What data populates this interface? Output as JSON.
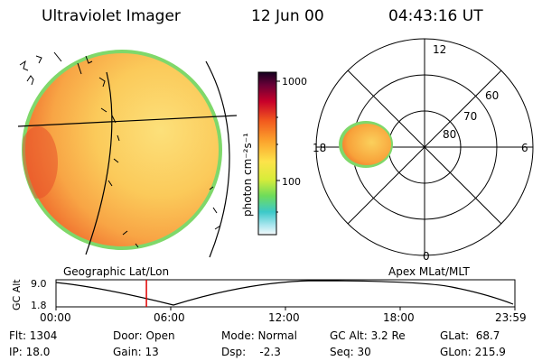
{
  "header": {
    "title": "Ultraviolet Imager",
    "date": "12 Jun 00",
    "time": "04:43:16 UT"
  },
  "colorbar": {
    "unit_label": "photon cm⁻²s⁻¹",
    "ticks": [
      "1000",
      "100"
    ]
  },
  "labels": {
    "geographic": "Geographic Lat/Lon",
    "apex": "Apex MLat/MLT"
  },
  "polar_plot": {
    "mlt_labels": [
      "12",
      "18",
      "6",
      "0"
    ],
    "mlat_labels": [
      "60",
      "70",
      "80"
    ]
  },
  "timeline": {
    "axis_label": "GC Alt",
    "y_ticks": [
      "9.0",
      "1.8"
    ],
    "x_ticks": [
      "00:00",
      "06:00",
      "12:00",
      "18:00",
      "23:59"
    ],
    "current_time_fraction": 0.197
  },
  "info": {
    "flt": "Flt: 1304",
    "ip": "IP: 18.0",
    "door": "Door: Open",
    "gain": "Gain: 13",
    "mode": "Mode: Normal",
    "dsp": "Dsp:    -2.3",
    "gc_alt": "GC Alt: 3.2 Re",
    "seq": "Seq: 30",
    "glat": "GLat:  68.7",
    "glon": "GLon: 215.9"
  },
  "colors": {
    "marker": "#e00000",
    "disk_fill": "#fbd56a",
    "disk_edge": "#7fd86a"
  }
}
